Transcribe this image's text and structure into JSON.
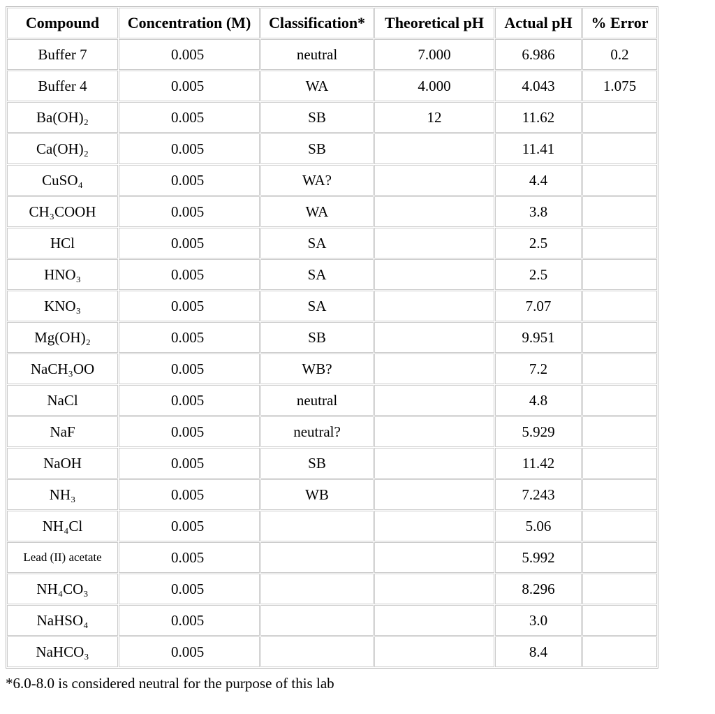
{
  "table": {
    "header": [
      "Compound",
      "Concentration (M)",
      "Classification*",
      "Theoretical pH",
      "Actual pH",
      "% Error"
    ],
    "rows": [
      [
        "Buffer 7",
        "0.005",
        "neutral",
        "7.000",
        "6.986",
        "0.2"
      ],
      [
        "Buffer 4",
        "0.005",
        "WA",
        "4.000",
        "4.043",
        "1.075"
      ],
      [
        "Ba(OH)₂",
        "0.005",
        "SB",
        "12",
        "11.62",
        null
      ],
      [
        "Ca(OH)₂",
        "0.005",
        "SB",
        null,
        "11.41",
        null
      ],
      [
        "CuSO₄",
        "0.005",
        "WA?",
        null,
        "4.4",
        null
      ],
      [
        "CH₃COOH",
        "0.005",
        "WA",
        null,
        "3.8",
        null
      ],
      [
        "HCl",
        "0.005",
        "SA",
        null,
        "2.5",
        null
      ],
      [
        "HNO₃",
        "0.005",
        "SA",
        null,
        "2.5",
        null
      ],
      [
        "KNO₃",
        "0.005",
        "SA",
        null,
        "7.07",
        null
      ],
      [
        "Mg(OH)₂",
        "0.005",
        "SB",
        null,
        "9.951",
        null
      ],
      [
        "NaCH₃OO",
        "0.005",
        "WB?",
        null,
        "7.2",
        null
      ],
      [
        "NaCl",
        "0.005",
        "neutral",
        null,
        "4.8",
        null
      ],
      [
        "NaF",
        "0.005",
        "neutral?",
        null,
        "5.929",
        null
      ],
      [
        "NaOH",
        "0.005",
        "SB",
        null,
        "11.42",
        null
      ],
      [
        "NH₃",
        "0.005",
        "WB",
        null,
        "7.243",
        null
      ],
      [
        "NH₄Cl",
        "0.005",
        null,
        null,
        "5.06",
        null
      ],
      [
        "Lead (II) acetate",
        "0.005",
        null,
        null,
        "5.992",
        null
      ],
      [
        "NH₄CO₃",
        "0.005",
        null,
        null,
        "8.296",
        null
      ],
      [
        "NaHSO₄",
        "0.005",
        null,
        null,
        "3.0",
        null
      ],
      [
        "NaHCO₃",
        "0.005",
        null,
        null,
        "8.4",
        null
      ]
    ]
  },
  "footnote": "*6.0-8.0 is considered neutral for the purpose of this lab"
}
